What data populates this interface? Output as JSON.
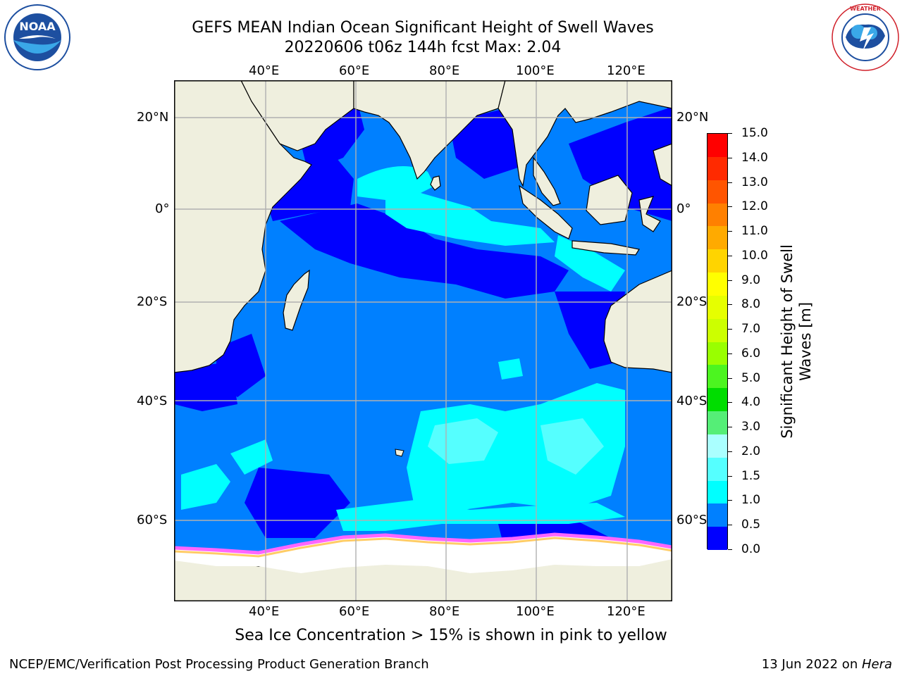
{
  "title": {
    "line1": "GEFS MEAN Indian Ocean Significant Height of Swell Waves",
    "line2": "20220606 t06z 144h fcst   Max: 2.04"
  },
  "logos": {
    "left": {
      "icon": "noaa-logo",
      "text": "NOAA"
    },
    "right": {
      "icon": "national-weather-service-logo",
      "text": "NATIONAL WEATHER SERVICE"
    }
  },
  "map": {
    "projection": "lat-lon",
    "lon_range": [
      20,
      129
    ],
    "lat_range": [
      -75,
      28
    ],
    "lon_ticks": [
      "40°E",
      "60°E",
      "80°E",
      "100°E",
      "120°E"
    ],
    "lat_ticks": [
      "20°N",
      "0°",
      "20°S",
      "40°S",
      "60°S"
    ],
    "gridlines": true,
    "land_color": "#efefde",
    "ice_color": "#ffffff",
    "ice_edge_colors": [
      "#ff66ff",
      "#ff99cc",
      "#ffcc66"
    ]
  },
  "colorbar": {
    "label_line1": "Significant Height of Swell",
    "label_line2": "Waves [m]",
    "ticks": [
      "15.0",
      "14.0",
      "13.0",
      "12.0",
      "11.0",
      "10.0",
      "9.0",
      "8.0",
      "7.0",
      "6.0",
      "5.0",
      "4.0",
      "3.0",
      "2.0",
      "1.5",
      "1.0",
      "0.5",
      "0.0"
    ],
    "bin_colors": [
      "#ff0000",
      "#ff2a00",
      "#ff5500",
      "#ff8000",
      "#ffaa00",
      "#ffd400",
      "#ffff00",
      "#e6ff00",
      "#ccff00",
      "#99ff00",
      "#4cf520",
      "#00dd00",
      "#55ee77",
      "#aaffff",
      "#55ffff",
      "#00ffff",
      "#0080ff",
      "#0000ff"
    ]
  },
  "note": "Sea Ice Concentration > 15% is shown in pink to yellow",
  "footer": {
    "left": "NCEP/EMC/Verification Post Processing Product Generation Branch",
    "right_prefix": "13 Jun 2022 on ",
    "right_host": "Hera"
  }
}
